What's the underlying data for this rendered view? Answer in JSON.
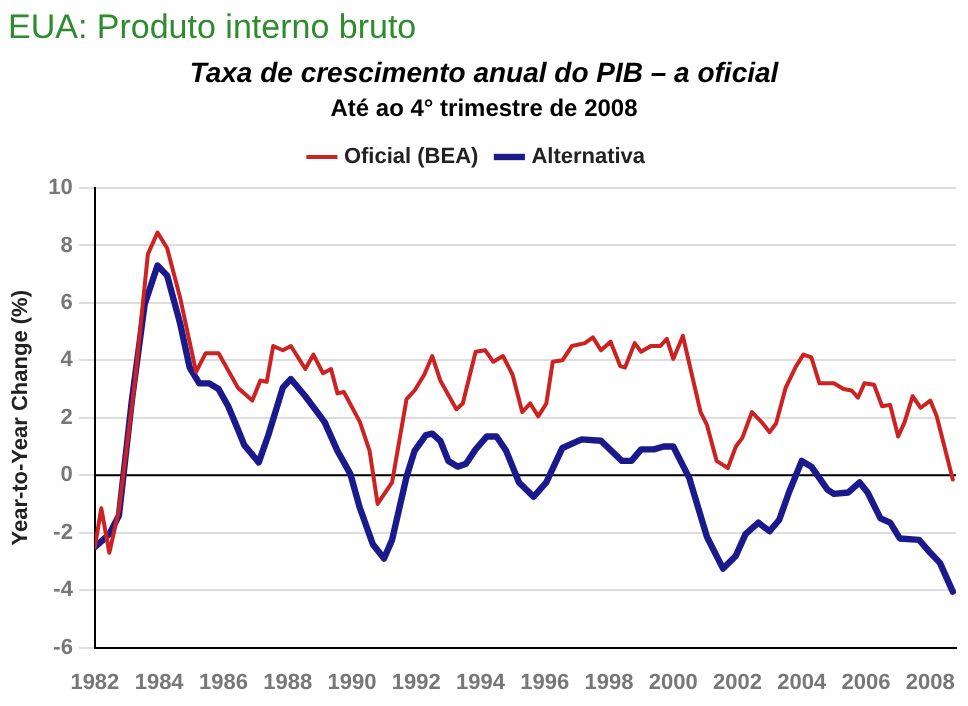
{
  "chart_data": {
    "type": "line",
    "title": "EUA: Produto interno bruto",
    "subtitle": "Taxa de crescimento anual do PIB – a oficial",
    "annotations": [
      "Até ao 4° trimestre de 2008"
    ],
    "ylabel": "Year-to-Year Change (%)",
    "xlim": [
      1982,
      2008.8
    ],
    "xticks": [
      1982,
      1984,
      1986,
      1988,
      1990,
      1992,
      1994,
      1996,
      1998,
      2000,
      2002,
      2004,
      2006,
      2008
    ],
    "ylim": [
      -6,
      10
    ],
    "yticks": [
      -6,
      -4,
      -2,
      0,
      2,
      4,
      6,
      8,
      10
    ],
    "grid": "y",
    "legend": "top",
    "marker": "none",
    "line_style": "solid",
    "ref_lines": [
      {
        "axis": "y",
        "value": 0,
        "color": "#000000"
      }
    ],
    "series": [
      {
        "name": "Oficial (BEA)",
        "color": "#cc2222",
        "x": [
          1982.0,
          1982.2,
          1982.45,
          1982.75,
          1983.25,
          1983.65,
          1983.95,
          1984.25,
          1984.65,
          1985.15,
          1985.45,
          1985.85,
          1986.45,
          1986.9,
          1987.15,
          1987.35,
          1987.55,
          1987.85,
          1988.1,
          1988.55,
          1988.8,
          1989.1,
          1989.35,
          1989.55,
          1989.75,
          1990.25,
          1990.55,
          1990.8,
          1991.25,
          1991.7,
          1991.95,
          1992.25,
          1992.5,
          1992.75,
          1993.25,
          1993.45,
          1993.85,
          1994.15,
          1994.4,
          1994.7,
          1995.0,
          1995.3,
          1995.55,
          1995.8,
          1996.05,
          1996.25,
          1996.55,
          1996.85,
          1997.25,
          1997.5,
          1997.75,
          1998.05,
          1998.35,
          1998.5,
          1998.8,
          1999.0,
          1999.3,
          1999.6,
          1999.8,
          2000.0,
          2000.3,
          2000.85,
          2001.05,
          2001.35,
          2001.7,
          2001.95,
          2002.15,
          2002.45,
          2002.75,
          2003.0,
          2003.2,
          2003.5,
          2003.8,
          2004.05,
          2004.3,
          2004.55,
          2005.0,
          2005.3,
          2005.55,
          2005.75,
          2005.95,
          2006.25,
          2006.5,
          2006.75,
          2007.0,
          2007.2,
          2007.45,
          2007.7,
          2008.0,
          2008.2,
          2008.7
        ],
        "values": [
          -2.5,
          -1.15,
          -2.7,
          -1.2,
          3.3,
          7.7,
          8.45,
          7.9,
          6.2,
          3.6,
          4.25,
          4.25,
          3.05,
          2.6,
          3.3,
          3.25,
          4.5,
          4.35,
          4.5,
          3.7,
          4.2,
          3.55,
          3.7,
          2.85,
          2.9,
          1.85,
          0.85,
          -1.0,
          -0.25,
          2.65,
          2.95,
          3.5,
          4.15,
          3.3,
          2.3,
          2.5,
          4.3,
          4.35,
          3.95,
          4.15,
          3.5,
          2.2,
          2.5,
          2.05,
          2.5,
          3.95,
          4.0,
          4.5,
          4.6,
          4.8,
          4.35,
          4.65,
          3.8,
          3.75,
          4.6,
          4.3,
          4.5,
          4.5,
          4.75,
          4.05,
          4.85,
          2.2,
          1.75,
          0.5,
          0.25,
          1.0,
          1.3,
          2.2,
          1.85,
          1.5,
          1.8,
          3.05,
          3.75,
          4.2,
          4.1,
          3.2,
          3.2,
          3.0,
          2.95,
          2.7,
          3.2,
          3.15,
          2.4,
          2.45,
          1.35,
          1.85,
          2.75,
          2.35,
          2.6,
          2.05,
          -0.15
        ]
      },
      {
        "name": "Alternativa",
        "color": "#1a1a8c",
        "x": [
          1982.0,
          1982.45,
          1982.75,
          1983.15,
          1983.55,
          1983.95,
          1984.25,
          1984.65,
          1984.95,
          1985.25,
          1985.55,
          1985.85,
          1986.15,
          1986.45,
          1986.65,
          1987.1,
          1987.4,
          1987.85,
          1988.1,
          1988.55,
          1988.85,
          1989.15,
          1989.55,
          1989.95,
          1990.25,
          1990.65,
          1991.0,
          1991.25,
          1991.7,
          1991.95,
          1992.3,
          1992.5,
          1992.75,
          1993.0,
          1993.3,
          1993.55,
          1993.85,
          1994.2,
          1994.5,
          1994.8,
          1995.2,
          1995.65,
          1996.05,
          1996.55,
          1997.15,
          1997.75,
          1998.4,
          1998.7,
          1999.0,
          1999.4,
          1999.7,
          2000.0,
          2000.5,
          2001.05,
          2001.55,
          2001.95,
          2002.25,
          2002.65,
          2003.0,
          2003.3,
          2003.6,
          2004.0,
          2004.3,
          2004.8,
          2005.0,
          2005.45,
          2005.8,
          2006.05,
          2006.45,
          2006.75,
          2007.05,
          2007.65,
          2008.0,
          2008.3,
          2008.7
        ],
        "values": [
          -2.5,
          -2.05,
          -1.4,
          2.6,
          5.95,
          7.3,
          6.95,
          5.3,
          3.75,
          3.2,
          3.2,
          3.0,
          2.4,
          1.6,
          1.05,
          0.45,
          1.4,
          3.05,
          3.35,
          2.75,
          2.3,
          1.85,
          0.85,
          0.05,
          -1.15,
          -2.4,
          -2.9,
          -2.25,
          -0.05,
          0.85,
          1.4,
          1.45,
          1.2,
          0.5,
          0.3,
          0.4,
          0.9,
          1.35,
          1.35,
          0.85,
          -0.25,
          -0.75,
          -0.25,
          0.95,
          1.25,
          1.2,
          0.5,
          0.5,
          0.9,
          0.9,
          1.0,
          1.0,
          -0.1,
          -2.15,
          -3.25,
          -2.8,
          -2.05,
          -1.65,
          -1.95,
          -1.55,
          -0.6,
          0.5,
          0.3,
          -0.5,
          -0.65,
          -0.6,
          -0.25,
          -0.6,
          -1.5,
          -1.65,
          -2.2,
          -2.25,
          -2.7,
          -3.05,
          -4.05
        ]
      }
    ]
  }
}
